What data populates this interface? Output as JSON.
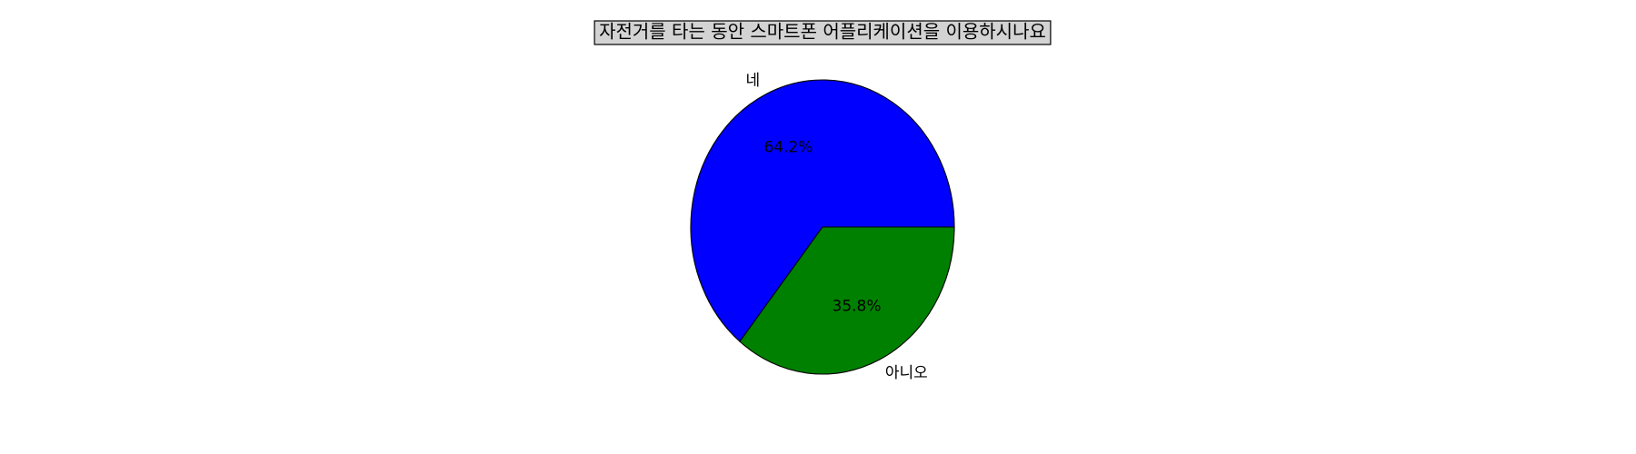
{
  "chart_data": {
    "type": "pie",
    "title": "자전거를 타는 동안 스마트폰 어플리케이션을 이용하시나요",
    "slices": [
      {
        "label": "네",
        "value": 64.2,
        "pct_text": "64.2%",
        "color": "#0000ff"
      },
      {
        "label": "아니오",
        "value": 35.8,
        "pct_text": "35.8%",
        "color": "#008000"
      }
    ],
    "start_angle_deg": 0,
    "direction": "counterclockwise",
    "title_box_color": "#d3d3d3"
  }
}
